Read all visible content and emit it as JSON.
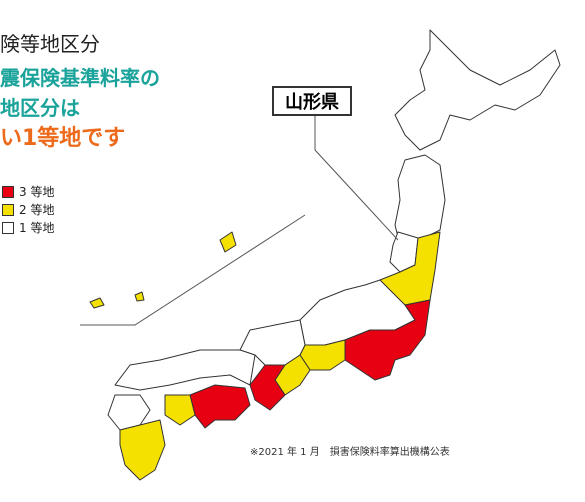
{
  "header": {
    "category": "険等地区分",
    "headline": [
      "震保険基準料率の",
      "地区分は",
      "い1等地です"
    ]
  },
  "callout": {
    "label": "山形県"
  },
  "legend": {
    "items": [
      "3 等地",
      "2 等地",
      "1 等地"
    ]
  },
  "footnote": "※2021 年 1 月　損害保険料率算出機構公表"
}
